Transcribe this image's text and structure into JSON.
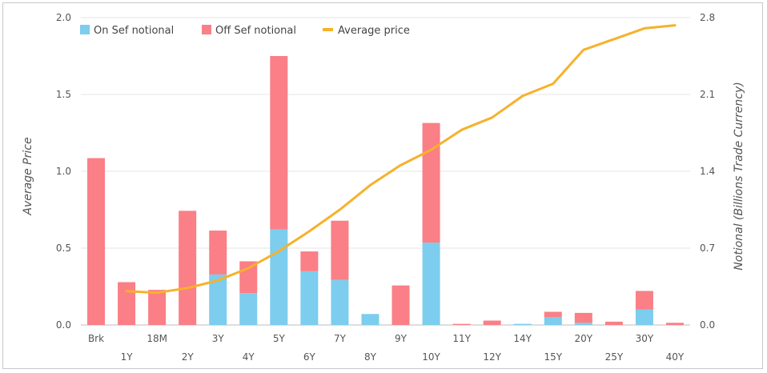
{
  "chart_data": {
    "type": "bar",
    "title": "",
    "stacked": true,
    "categories": [
      "Brk",
      "1Y",
      "18M",
      "2Y",
      "3Y",
      "4Y",
      "5Y",
      "6Y",
      "7Y",
      "8Y",
      "9Y",
      "10Y",
      "11Y",
      "12Y",
      "14Y",
      "15Y",
      "20Y",
      "25Y",
      "30Y",
      "40Y"
    ],
    "series": [
      {
        "name": "On Sef notional",
        "type": "bar",
        "axis": "notional",
        "color": "#7ccdee",
        "values": [
          0,
          0,
          0,
          0,
          0.46,
          0.29,
          0.87,
          0.49,
          0.41,
          0.1,
          0,
          0.75,
          0,
          0,
          0.01,
          0.07,
          0.02,
          0,
          0.14,
          0
        ]
      },
      {
        "name": "Off Sef notional",
        "type": "bar",
        "axis": "notional",
        "color": "#fa7f86",
        "values": [
          1.52,
          0.39,
          0.32,
          1.04,
          0.4,
          0.29,
          1.58,
          0.18,
          0.54,
          0,
          0.36,
          1.09,
          0.01,
          0.04,
          0,
          0.05,
          0.09,
          0.03,
          0.17,
          0.02
        ]
      },
      {
        "name": "Average price",
        "type": "line",
        "axis": "price",
        "color": "#f7b12b",
        "values": [
          null,
          0.22,
          0.21,
          0.24,
          0.29,
          0.37,
          0.48,
          0.61,
          0.75,
          0.91,
          1.04,
          1.14,
          1.27,
          1.35,
          1.49,
          1.57,
          1.79,
          1.86,
          1.93,
          1.95
        ]
      }
    ],
    "y_left": {
      "label": "Average Price",
      "range": [
        0,
        2.0
      ],
      "ticks": [
        "0.0",
        "0.5",
        "1.0",
        "1.5",
        "2.0"
      ],
      "tick_values": [
        0,
        0.5,
        1.0,
        1.5,
        2.0
      ]
    },
    "y_right": {
      "label": "Notional (Billions Trade Currency)",
      "range": [
        0,
        2.8
      ],
      "ticks": [
        "0.0",
        "0.7",
        "1.4",
        "2.1",
        "2.8"
      ],
      "tick_values": [
        0,
        0.7,
        1.4,
        2.1,
        2.8
      ]
    },
    "grid": true,
    "legend_position": "top-left"
  }
}
